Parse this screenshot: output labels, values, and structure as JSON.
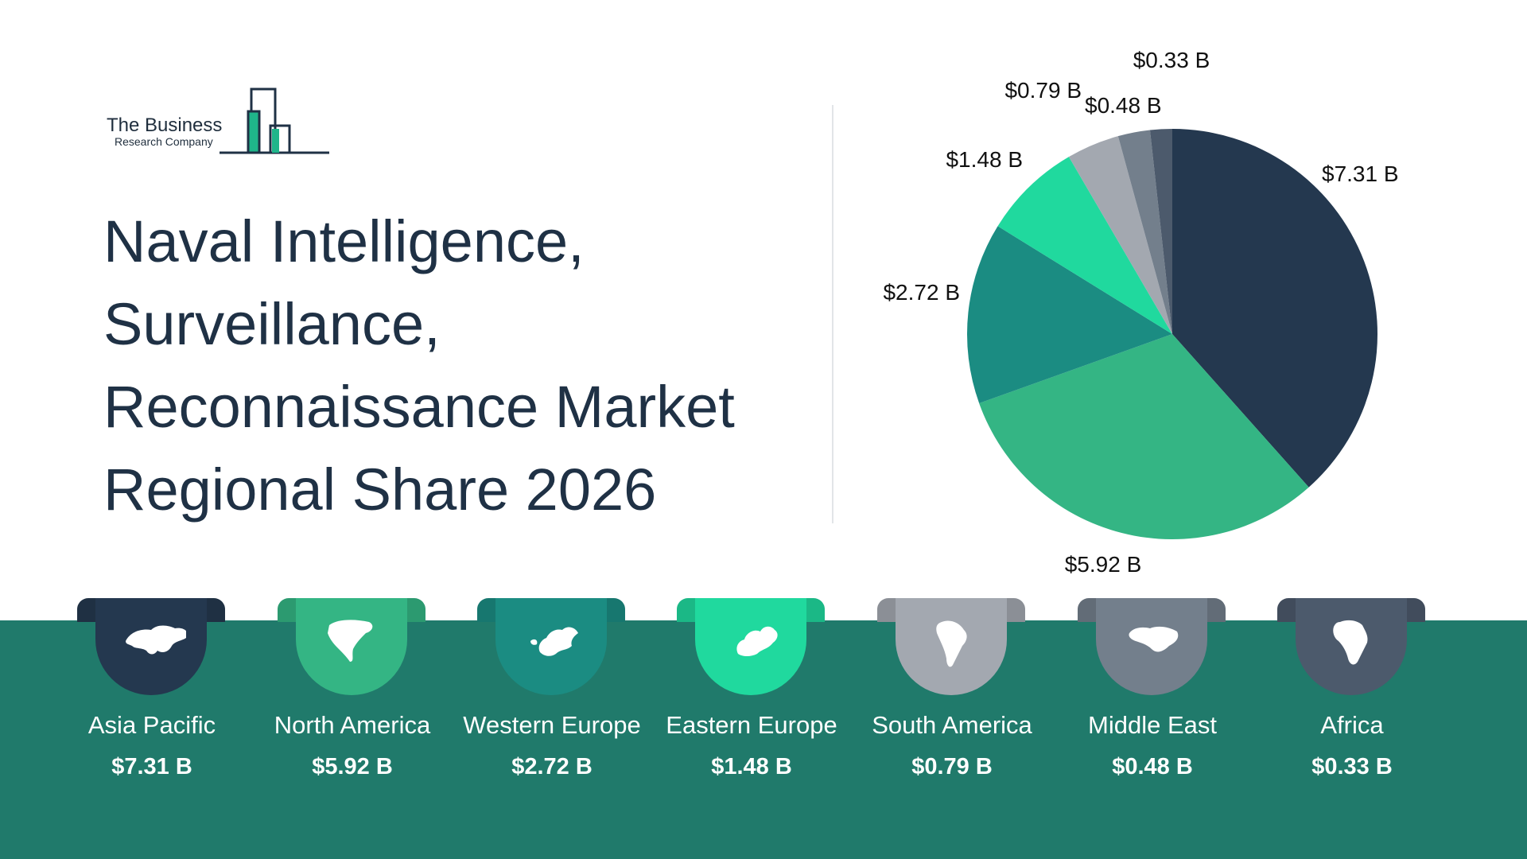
{
  "logo": {
    "line1": "The Business",
    "line2": "Research Company"
  },
  "title_lines": [
    "Naval Intelligence,",
    "Surveillance,",
    "Reconnaissance Market",
    "Regional Share 2026"
  ],
  "chart_data": {
    "type": "pie",
    "title": "Naval Intelligence, Surveillance, Reconnaissance Market Regional Share 2026",
    "categories": [
      "Asia Pacific",
      "North America",
      "Western Europe",
      "Eastern Europe",
      "South America",
      "Middle East",
      "Africa"
    ],
    "values": [
      7.31,
      5.92,
      2.72,
      1.48,
      0.79,
      0.48,
      0.33
    ],
    "labels": [
      "$7.31 B",
      "$5.92 B",
      "$2.72 B",
      "$1.48 B",
      "$0.79 B",
      "$0.48 B",
      "$0.33 B"
    ],
    "unit": "B",
    "colors": [
      "#24384f",
      "#34b584",
      "#1b8c82",
      "#20d99e",
      "#a3a8b0",
      "#737f8c",
      "#4c5a6c"
    ]
  },
  "regions": [
    {
      "name": "Asia Pacific",
      "value": "$7.31 B",
      "color": "#24384f",
      "icon": "asia-pacific-map-icon"
    },
    {
      "name": "North America",
      "value": "$5.92 B",
      "color": "#34b584",
      "icon": "north-america-map-icon"
    },
    {
      "name": "Western Europe",
      "value": "$2.72 B",
      "color": "#1b8c82",
      "icon": "western-europe-map-icon"
    },
    {
      "name": "Eastern Europe",
      "value": "$1.48 B",
      "color": "#20d99e",
      "icon": "eastern-europe-map-icon"
    },
    {
      "name": "South America",
      "value": "$0.79 B",
      "color": "#a3a8b0",
      "icon": "south-america-map-icon"
    },
    {
      "name": "Middle East",
      "value": "$0.48 B",
      "color": "#737f8c",
      "icon": "middle-east-map-icon"
    },
    {
      "name": "Africa",
      "value": "$0.33 B",
      "color": "#4c5a6c",
      "icon": "africa-map-icon"
    }
  ]
}
